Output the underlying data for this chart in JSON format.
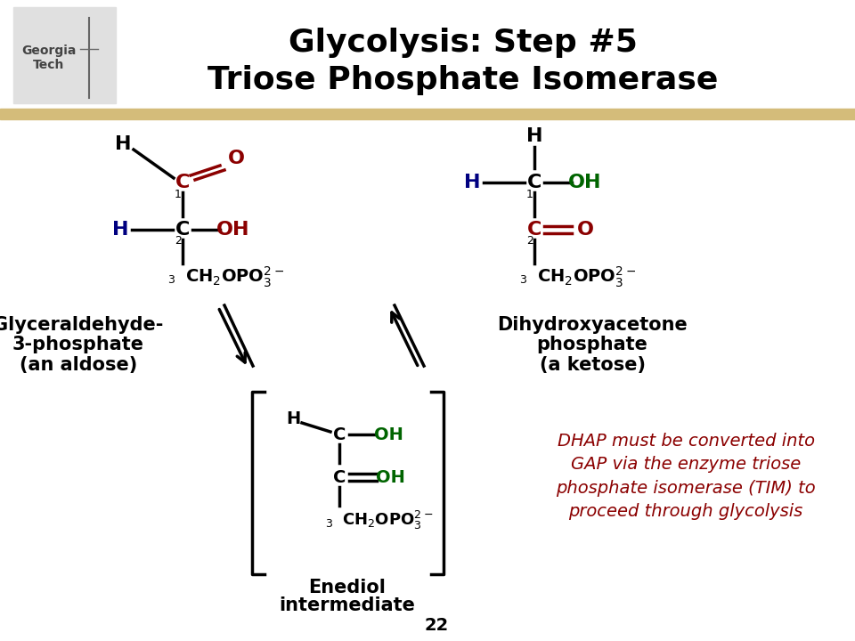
{
  "title_line1": "Glycolysis: Step #5",
  "title_line2": "Triose Phosphate Isomerase",
  "title_fontsize": 26,
  "title_color": "#000000",
  "bg_color": "#ffffff",
  "bar_color": "#d4bc7a",
  "page_number": "22",
  "dark_red": "#8B0000",
  "blue": "#000080",
  "green": "#006400",
  "black": "#000000",
  "gray_logo": "#999999"
}
